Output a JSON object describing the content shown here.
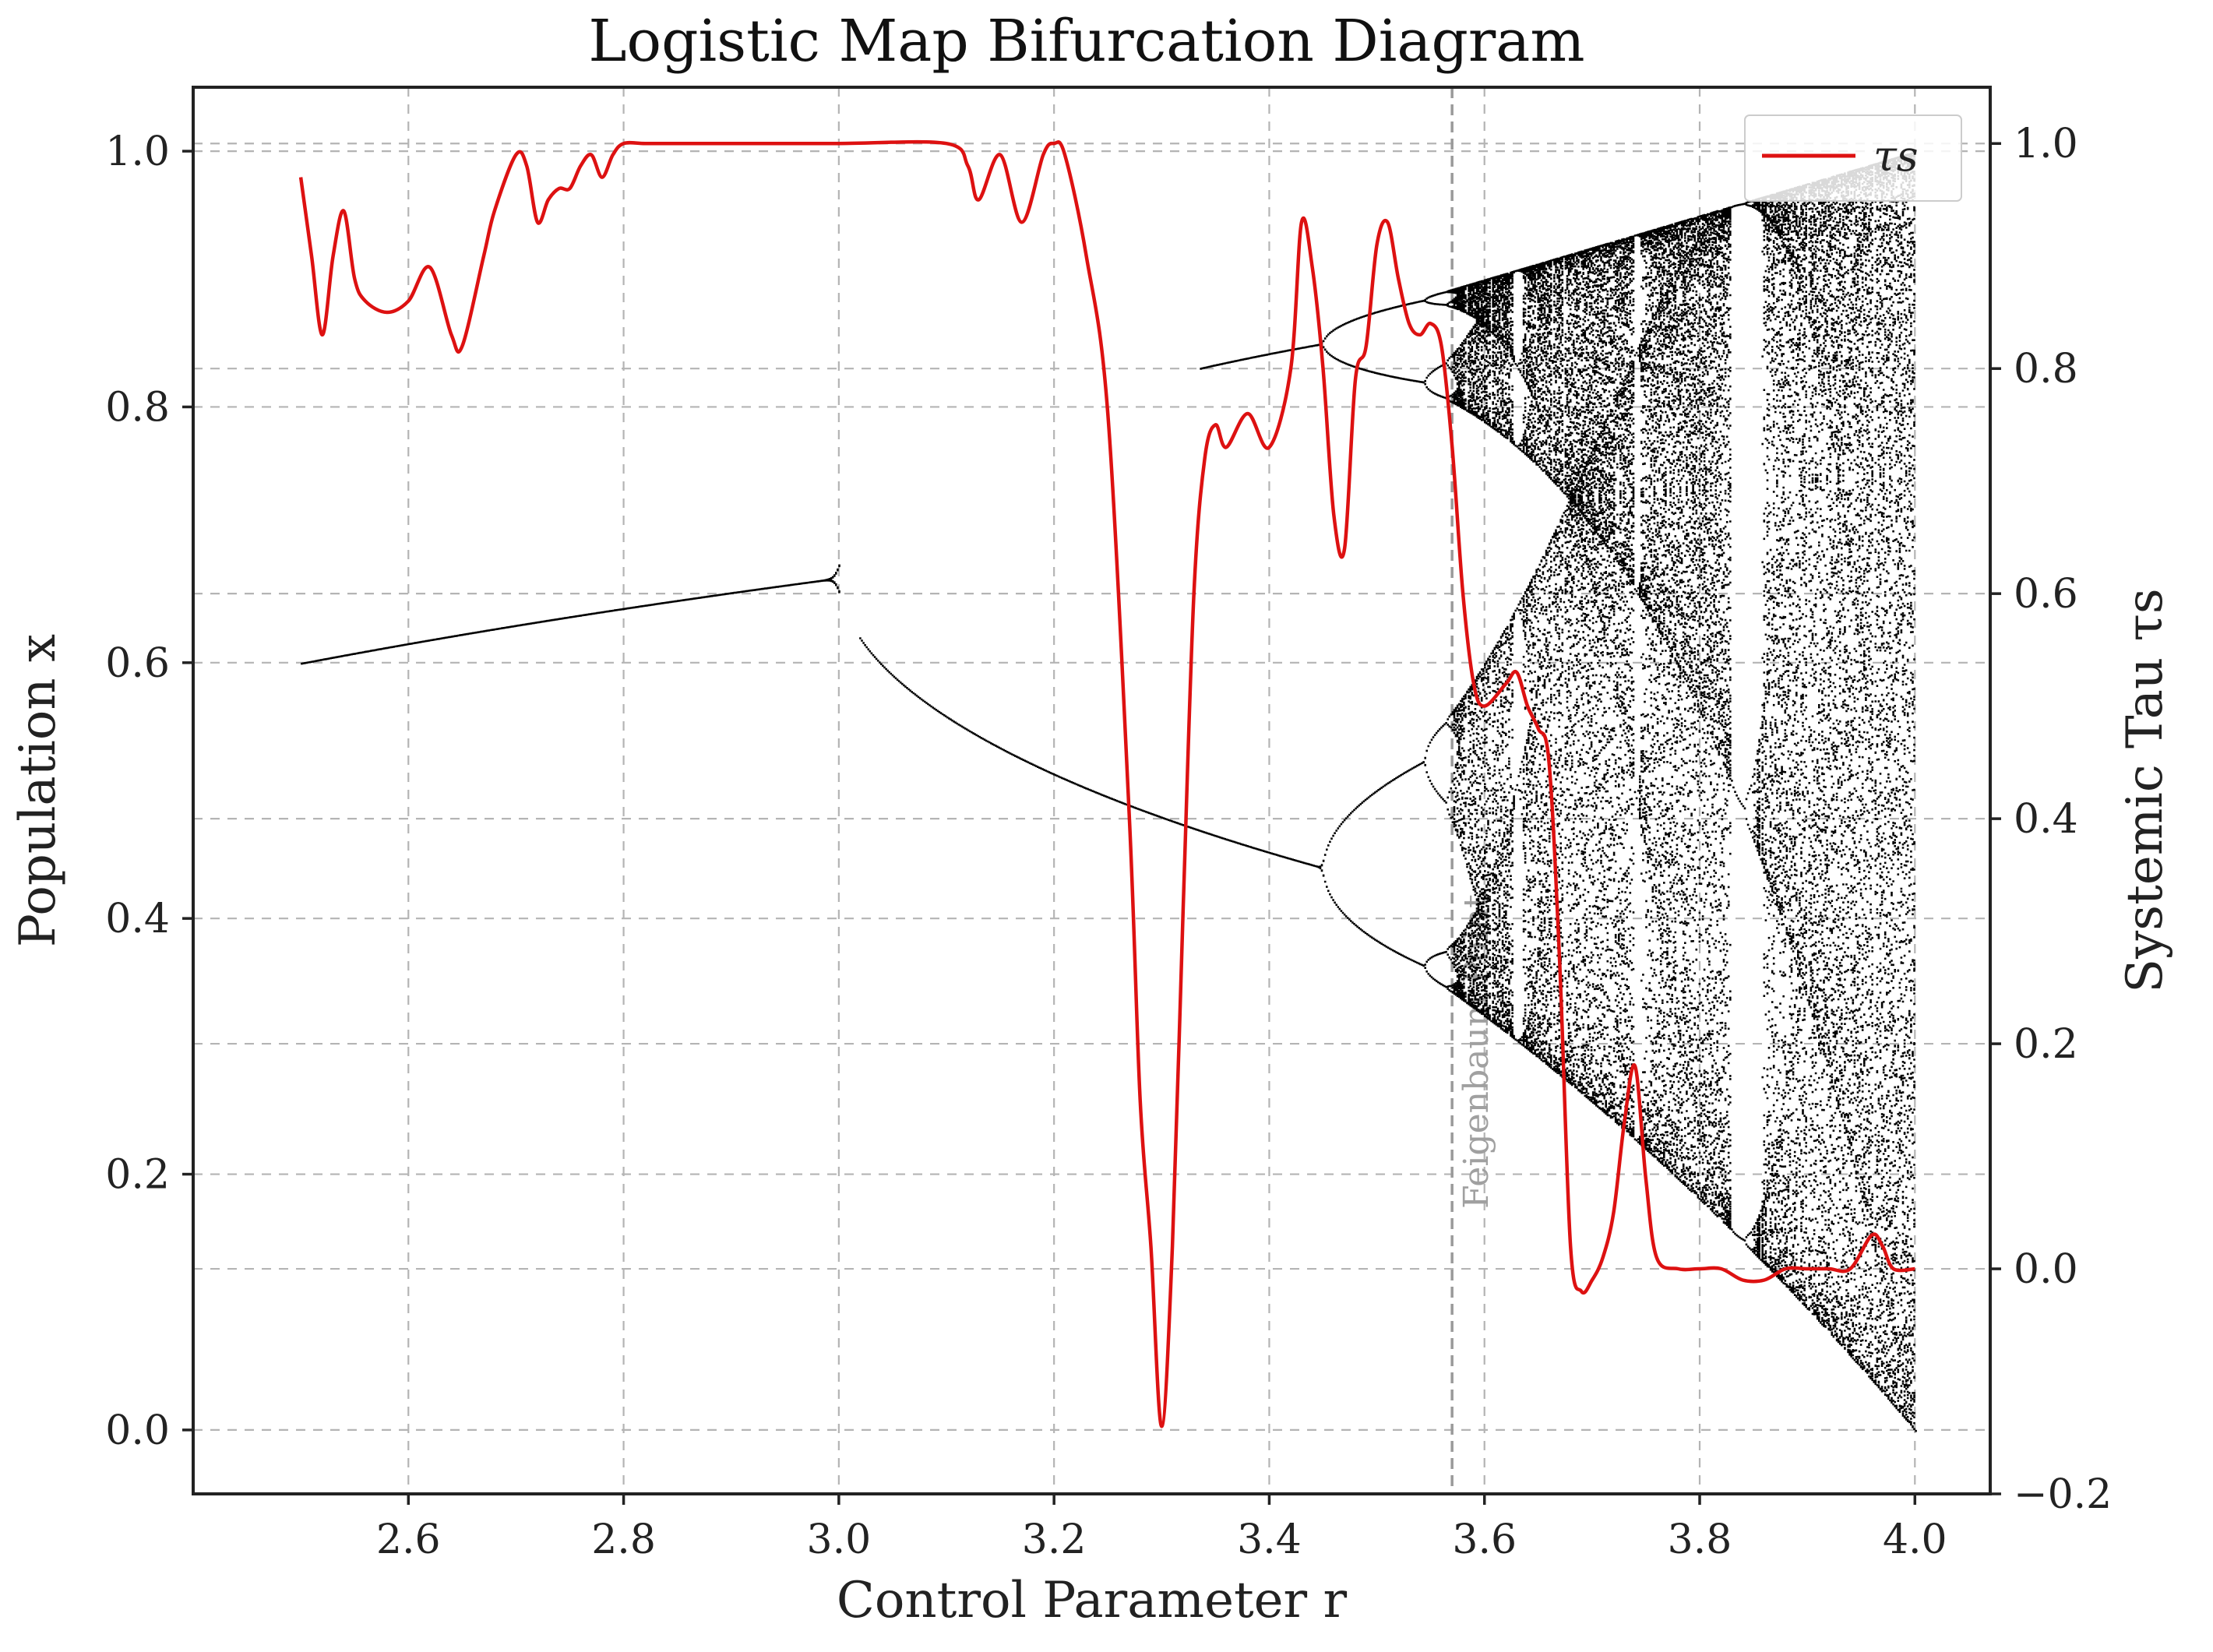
{
  "chart_data": {
    "type": "line",
    "title": "Logistic Map Bifurcation Diagram",
    "xlabel": "Control Parameter r",
    "ylabel": "Population x",
    "y2label": "Systemic Tau τs",
    "xlim": [
      2.4,
      4.07
    ],
    "ylim": [
      -0.05,
      1.05
    ],
    "y2lim": [
      -0.2,
      1.05
    ],
    "x_ticks": [
      "2.6",
      "2.8",
      "3.0",
      "3.2",
      "3.4",
      "3.6",
      "3.8",
      "4.0"
    ],
    "y_ticks": [
      "0.0",
      "0.2",
      "0.4",
      "0.6",
      "0.8",
      "1.0"
    ],
    "y2_ticks": [
      "−0.2",
      "0.0",
      "0.2",
      "0.4",
      "0.6",
      "0.8",
      "1.0"
    ],
    "grid": true,
    "legend": {
      "position": "top-right",
      "entries": [
        {
          "label": "τs",
          "color": "#dd1111"
        }
      ]
    },
    "annotation": {
      "text": "Feigenbaum Point",
      "x": 3.5699
    },
    "series": [
      {
        "name": "Population x",
        "axis": "left",
        "color": "#000000",
        "kind": "bifurcation",
        "r_range": [
          2.5,
          4.0
        ],
        "period_one_range": [
          2.5,
          3.0
        ],
        "period_two_range": [
          3.0,
          3.335
        ],
        "upper_branch_gap": [
          3.0,
          3.335
        ],
        "chaos_onset": 3.5699
      },
      {
        "name": "τs",
        "axis": "right",
        "color": "#dd1111",
        "x": [
          2.5,
          2.51,
          2.52,
          2.53,
          2.54,
          2.55,
          2.56,
          2.58,
          2.6,
          2.62,
          2.64,
          2.65,
          2.67,
          2.68,
          2.7,
          2.71,
          2.72,
          2.73,
          2.74,
          2.75,
          2.76,
          2.77,
          2.78,
          2.79,
          2.8,
          2.82,
          2.85,
          2.9,
          3.0,
          3.1,
          3.12,
          3.13,
          3.15,
          3.17,
          3.19,
          3.2,
          3.21,
          3.23,
          3.25,
          3.27,
          3.28,
          3.29,
          3.3,
          3.31,
          3.32,
          3.33,
          3.34,
          3.35,
          3.36,
          3.38,
          3.4,
          3.42,
          3.43,
          3.44,
          3.45,
          3.46,
          3.47,
          3.48,
          3.49,
          3.5,
          3.51,
          3.52,
          3.53,
          3.54,
          3.55,
          3.56,
          3.57,
          3.58,
          3.59,
          3.6,
          3.62,
          3.63,
          3.64,
          3.65,
          3.66,
          3.67,
          3.68,
          3.69,
          3.7,
          3.71,
          3.72,
          3.73,
          3.74,
          3.75,
          3.76,
          3.78,
          3.8,
          3.82,
          3.84,
          3.86,
          3.88,
          3.9,
          3.92,
          3.94,
          3.96,
          3.97,
          3.98,
          4.0
        ],
        "values": [
          0.97,
          0.9,
          0.83,
          0.9,
          0.94,
          0.88,
          0.86,
          0.85,
          0.86,
          0.89,
          0.83,
          0.82,
          0.9,
          0.94,
          0.99,
          0.98,
          0.93,
          0.95,
          0.96,
          0.96,
          0.98,
          0.99,
          0.97,
          0.99,
          1.0,
          1.0,
          1.0,
          1.0,
          1.0,
          1.0,
          0.98,
          0.95,
          0.99,
          0.93,
          0.99,
          1.0,
          0.99,
          0.9,
          0.76,
          0.4,
          0.15,
          0.02,
          -0.14,
          0.02,
          0.32,
          0.6,
          0.72,
          0.75,
          0.73,
          0.76,
          0.73,
          0.8,
          0.93,
          0.89,
          0.8,
          0.67,
          0.64,
          0.79,
          0.82,
          0.91,
          0.93,
          0.88,
          0.84,
          0.83,
          0.84,
          0.82,
          0.73,
          0.6,
          0.52,
          0.5,
          0.52,
          0.53,
          0.5,
          0.48,
          0.45,
          0.27,
          0.02,
          -0.02,
          -0.01,
          0.01,
          0.05,
          0.13,
          0.18,
          0.08,
          0.01,
          0.0,
          0.0,
          0.0,
          -0.01,
          -0.01,
          0.0,
          0.0,
          0.0,
          0.0,
          0.03,
          0.02,
          0.0,
          0.0
        ]
      }
    ]
  }
}
